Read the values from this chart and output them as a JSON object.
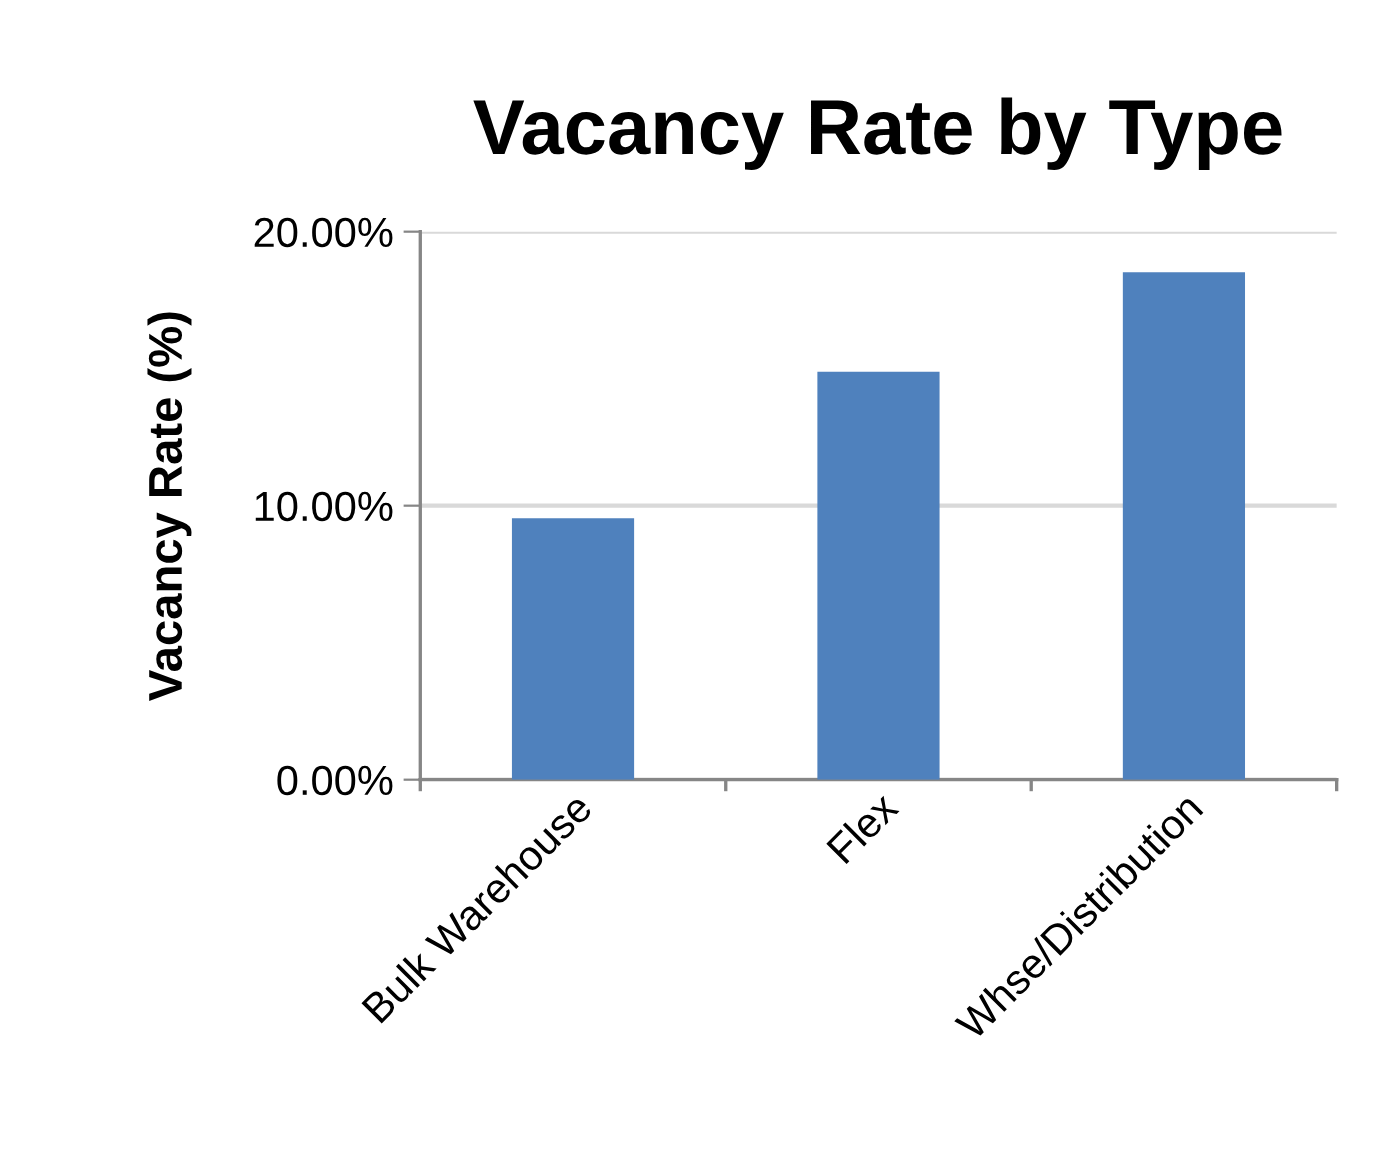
{
  "chart_data": {
    "type": "bar",
    "title": "Vacancy Rate by Type",
    "ylabel": "Vacancy Rate (%)",
    "categories": [
      "Bulk Warehouse",
      "Flex",
      "Whse/Distribution"
    ],
    "values": [
      9.54,
      14.89,
      18.52
    ],
    "color": "#4f81bd",
    "ylim": [
      0,
      20
    ],
    "yticks": [
      {
        "value": 0,
        "label": "0.00%"
      },
      {
        "value": 10,
        "label": "10.00%"
      },
      {
        "value": 20,
        "label": "20.00%"
      }
    ],
    "grid": "y",
    "legend": false
  }
}
